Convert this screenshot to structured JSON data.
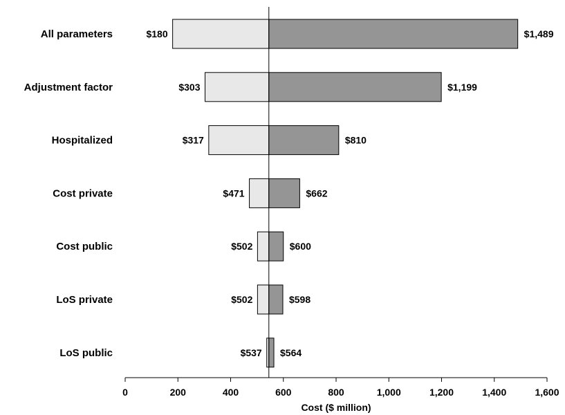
{
  "chart_data": {
    "type": "bar",
    "subtype": "tornado",
    "categories": [
      "All parameters",
      "Adjustment factor",
      "Hospitalized",
      "Cost private",
      "Cost public",
      "LoS private",
      "LoS public"
    ],
    "series": [
      {
        "name": "",
        "values": [
          180,
          303,
          317,
          471,
          502,
          502,
          537
        ],
        "labels": [
          "$180",
          "$303",
          "$317",
          "$471",
          "$502",
          "$502",
          "$537"
        ],
        "color": "#e8e8e8"
      },
      {
        "name": "",
        "values": [
          1489,
          1199,
          810,
          662,
          600,
          598,
          564
        ],
        "labels": [
          "$1,489",
          "$1,199",
          "$810",
          "$662",
          "$600",
          "$598",
          "$564"
        ],
        "color": "#959595"
      }
    ],
    "base_value": 545,
    "xlabel": "Cost ($ million)",
    "ylabel": "",
    "xlim": [
      0,
      1600
    ],
    "xticks": [
      0,
      200,
      400,
      600,
      800,
      1000,
      1200,
      1400,
      1600
    ],
    "xtick_labels": [
      "0",
      "200",
      "400",
      "600",
      "800",
      "1,000",
      "1,200",
      "1,400",
      "1,600"
    ],
    "grid": false,
    "legend": "none"
  }
}
